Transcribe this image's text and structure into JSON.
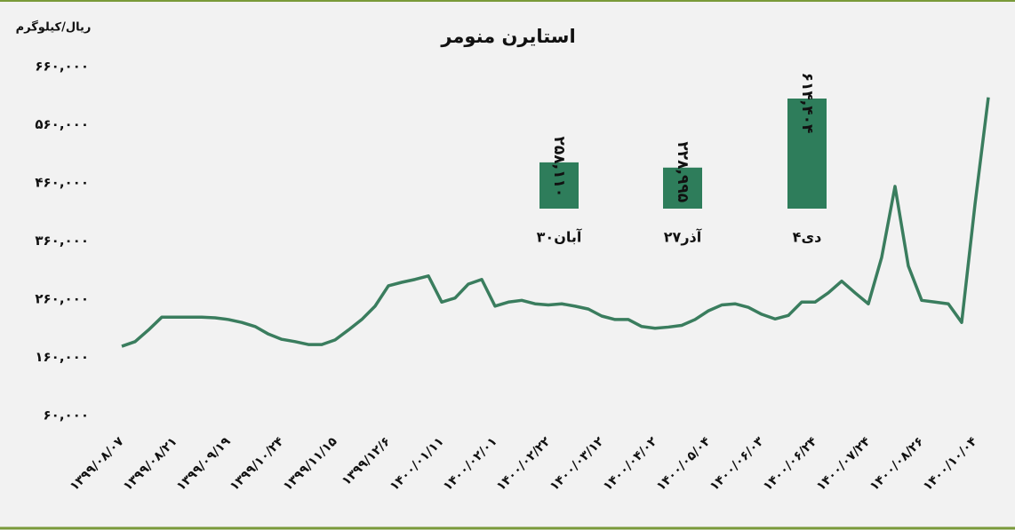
{
  "chart_data": [
    {
      "type": "line",
      "title": "استایرن منومر",
      "y_label": "ریال/کیلوگرم",
      "categories": [
        "۱۳۹۹/۰۸/۰۷",
        null,
        null,
        null,
        "۱۳۹۹/۰۸/۲۱",
        null,
        null,
        null,
        "۱۳۹۹/۰۹/۱۹",
        null,
        null,
        null,
        "۱۳۹۹/۱۰/۲۴",
        null,
        null,
        null,
        "۱۳۹۹/۱۱/۱۵",
        null,
        null,
        null,
        "۱۳۹۹/۱۲/۶",
        null,
        null,
        null,
        "۱۴۰۰/۰۱/۱۱",
        null,
        null,
        null,
        "۱۴۰۰/۰۲/۰۱",
        null,
        null,
        null,
        "۱۴۰۰/۰۲/۲۲",
        null,
        null,
        null,
        "۱۴۰۰/۰۳/۱۲",
        null,
        null,
        null,
        "۱۴۰۰/۰۴/۰۲",
        null,
        null,
        null,
        "۱۴۰۰/۰۵/۰۴",
        null,
        null,
        null,
        "۱۴۰۰/۰۶/۰۳",
        null,
        null,
        null,
        "۱۴۰۰/۰۶/۲۴",
        null,
        null,
        null,
        "۱۴۰۰/۰۷/۲۴",
        null,
        null,
        null,
        "۱۴۰۰/۰۸/۲۶",
        null,
        null,
        null,
        "۱۴۰۰/۱۰/۰۴",
        null
      ],
      "series": [
        {
          "name": "استایرن منومر",
          "color": "#3a7d5e",
          "values": [
            179000,
            187000,
            207000,
            229000,
            229000,
            229000,
            229000,
            228000,
            225000,
            220000,
            213000,
            200000,
            191000,
            187000,
            182000,
            182000,
            190000,
            207000,
            225000,
            248000,
            283000,
            289000,
            294000,
            300000,
            255000,
            262000,
            286000,
            294000,
            248000,
            255000,
            258000,
            252000,
            250000,
            252000,
            248000,
            243000,
            231000,
            225000,
            225000,
            213000,
            210000,
            212000,
            215000,
            225000,
            240000,
            250000,
            252000,
            246000,
            234000,
            226000,
            232000,
            255000,
            255000,
            271000,
            291000,
            271000,
            252000,
            332000,
            454000,
            317000,
            258000,
            255000,
            252000,
            220000,
            423000,
            607000
          ]
        }
      ],
      "ylim": [
        60000,
        660000
      ],
      "yticks": [
        {
          "value": 60000,
          "label": "۶۰,۰۰۰"
        },
        {
          "value": 160000,
          "label": "۱۶۰,۰۰۰"
        },
        {
          "value": 260000,
          "label": "۲۶۰,۰۰۰"
        },
        {
          "value": 360000,
          "label": "۳۶۰,۰۰۰"
        },
        {
          "value": 460000,
          "label": "۴۶۰,۰۰۰"
        },
        {
          "value": 560000,
          "label": "۵۶۰,۰۰۰"
        },
        {
          "value": 660000,
          "label": "۶۶۰,۰۰۰"
        }
      ]
    },
    {
      "type": "bar",
      "categories": [
        "۳۰آبان",
        "۲۷آذر",
        "۴دی"
      ],
      "values": [
        258110,
        228995,
        614404
      ],
      "value_labels": [
        "۲۵۸,۱۱۰",
        "۲۲۸,۹۹۵",
        "۶۱۴,۴۰۴"
      ],
      "color": "#2e7d5b"
    }
  ]
}
